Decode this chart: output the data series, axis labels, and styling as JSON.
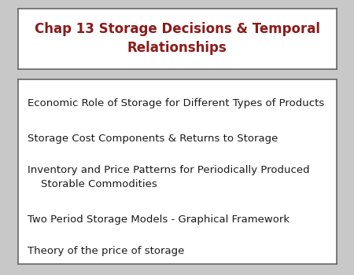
{
  "title_line1": "Chap 13 Storage Decisions & Temporal",
  "title_line2": "Relationships",
  "title_color": "#8B1A1A",
  "title_fontsize": 12,
  "body_items": [
    "Economic Role of Storage for Different Types of Products",
    "Storage Cost Components & Returns to Storage",
    "Inventory and Price Patterns for Periodically Produced\n    Storable Commodities",
    "Two Period Storage Models - Graphical Framework",
    "Theory of the price of storage"
  ],
  "body_fontsize": 9.5,
  "body_color": "#1a1a1a",
  "background_color": "#ffffff",
  "outer_bg": "#c8c8c8",
  "box_edge_color": "#666666"
}
